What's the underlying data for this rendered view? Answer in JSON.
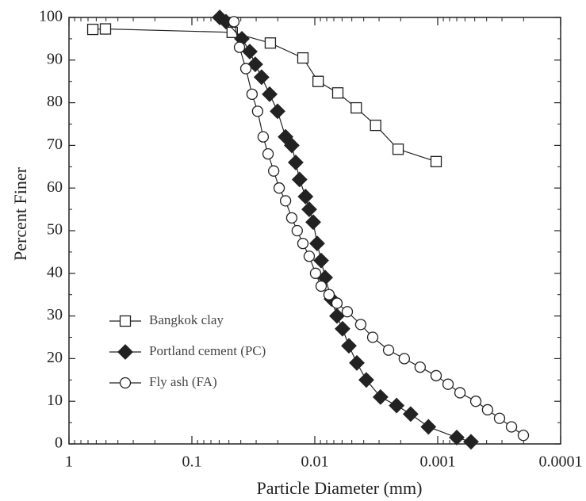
{
  "chart_data": {
    "type": "line",
    "x_label": "Particle Diameter (mm)",
    "y_label": "Percent Finer",
    "xlog": true,
    "xlim": [
      1,
      0.0001
    ],
    "xticks": [
      1,
      0.1,
      0.01,
      0.001,
      0.0001
    ],
    "ylim": [
      0,
      100
    ],
    "yticks": [
      0,
      10,
      20,
      30,
      40,
      50,
      60,
      70,
      80,
      90,
      100
    ],
    "legend": "lower left",
    "series": [
      {
        "name": "Bangkok clay",
        "color": "#222222",
        "marker": "square",
        "fill": "none",
        "x": [
          0.64,
          0.505,
          0.047,
          0.023,
          0.0125,
          0.0094,
          0.0065,
          0.0046,
          0.0032,
          0.0021,
          0.00103
        ],
        "values": [
          97.2,
          97.3,
          96.5,
          94,
          90.5,
          85,
          82.3,
          78.8,
          74.7,
          69.1,
          66.2
        ]
      },
      {
        "name": "Portland cement (PC)",
        "color": "#222222",
        "marker": "diamond",
        "fill": "filled",
        "x": [
          0.0594,
          0.0528,
          0.0392,
          0.0338,
          0.0305,
          0.0271,
          0.0233,
          0.0201,
          0.0173,
          0.0154,
          0.0143,
          0.0133,
          0.0119,
          0.0111,
          0.0103,
          0.00957,
          0.00888,
          0.00824,
          0.00732,
          0.0066,
          0.00595,
          0.00528,
          0.00455,
          0.00381,
          0.00292,
          0.00216,
          0.00166,
          0.00119,
          0.0007,
          0.000536
        ],
        "values": [
          100,
          99,
          95,
          92,
          89,
          86,
          82,
          78,
          72,
          70,
          66,
          62,
          58,
          55,
          52,
          47,
          43,
          39,
          34,
          30,
          27,
          23,
          19,
          15,
          11,
          9,
          7,
          4,
          1.5,
          0.5
        ]
      },
      {
        "name": "Fly ash (FA)",
        "color": "#222222",
        "marker": "circle",
        "fill": "none",
        "x": [
          0.0455,
          0.041,
          0.0364,
          0.0324,
          0.0292,
          0.0263,
          0.024,
          0.0216,
          0.0195,
          0.0173,
          0.0154,
          0.0139,
          0.0125,
          0.0111,
          0.00986,
          0.00888,
          0.00766,
          0.0066,
          0.00544,
          0.00423,
          0.00338,
          0.00251,
          0.00187,
          0.00139,
          0.00103,
          0.000824,
          0.000659,
          0.00049,
          0.000393,
          0.000314,
          0.000251,
          0.000201
        ],
        "values": [
          99,
          93,
          88,
          82,
          78,
          72,
          68,
          64,
          60,
          57,
          53,
          50,
          47,
          44,
          40,
          37,
          35,
          33,
          31,
          28,
          25,
          22,
          20,
          18,
          16,
          14,
          12,
          10,
          8,
          6,
          4,
          2
        ]
      }
    ]
  }
}
